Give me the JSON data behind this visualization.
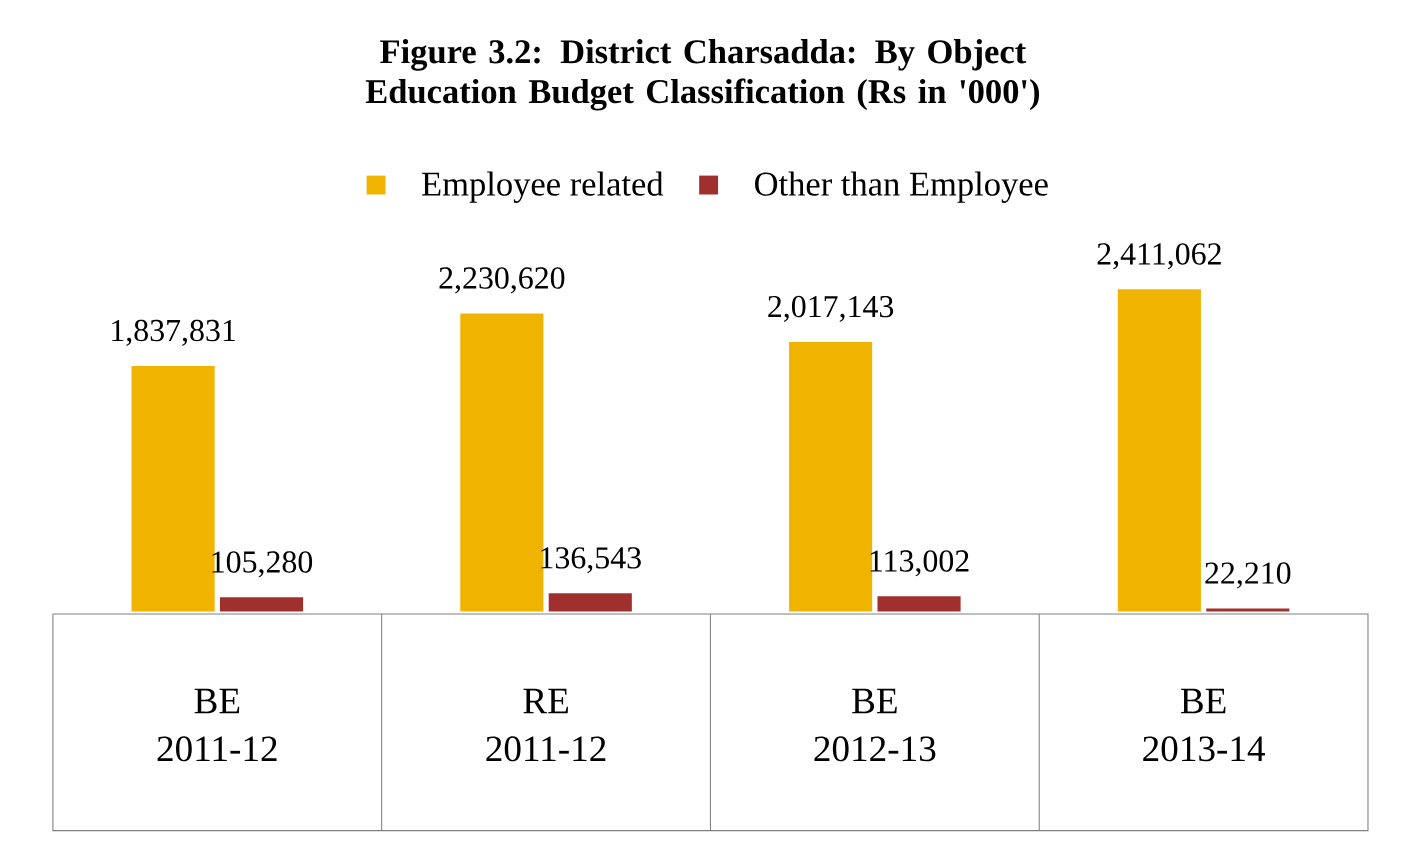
{
  "chart_data": {
    "type": "bar",
    "title": "Figure 3.2: District Charsadda: By Object Education Budget Classification (Rs in '000')",
    "categories": [
      "BE 2011-12",
      "RE 2011-12",
      "BE 2012-13",
      "BE 2013-14"
    ],
    "series": [
      {
        "name": "Employee related",
        "color": "#f0b400",
        "values": [
          1837831,
          2230620,
          2017143,
          2411062
        ],
        "value_labels": [
          "1,837,831",
          "2,230,620",
          "2,017,143",
          "2,411,062"
        ]
      },
      {
        "name": "Other than Employee",
        "color": "#a0302e",
        "values": [
          105280,
          136543,
          113002,
          22210
        ],
        "value_labels": [
          "105,280",
          "136,543",
          "113,002",
          "22,210"
        ]
      }
    ],
    "legend": "top"
  }
}
